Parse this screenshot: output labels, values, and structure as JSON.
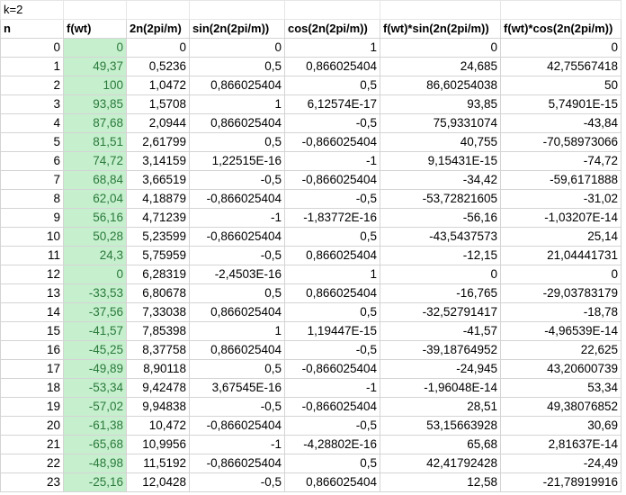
{
  "top_label": "k=2",
  "headers": [
    "n",
    "f(wt)",
    "2n(2pi/m)",
    "sin(2n(2pi/m))",
    "cos(2n(2pi/m))",
    "f(wt)*sin(2n(2pi/m))",
    "f(wt)*cos(2n(2pi/m))"
  ],
  "rows": [
    [
      "0",
      "0",
      "0",
      "0",
      "1",
      "0",
      "0"
    ],
    [
      "1",
      "49,37",
      "0,5236",
      "0,5",
      "0,866025404",
      "24,685",
      "42,75567418"
    ],
    [
      "2",
      "100",
      "1,0472",
      "0,866025404",
      "0,5",
      "86,60254038",
      "50"
    ],
    [
      "3",
      "93,85",
      "1,5708",
      "1",
      "6,12574E-17",
      "93,85",
      "5,74901E-15"
    ],
    [
      "4",
      "87,68",
      "2,0944",
      "0,866025404",
      "-0,5",
      "75,9331074",
      "-43,84"
    ],
    [
      "5",
      "81,51",
      "2,61799",
      "0,5",
      "-0,866025404",
      "40,755",
      "-70,58973066"
    ],
    [
      "6",
      "74,72",
      "3,14159",
      "1,22515E-16",
      "-1",
      "9,15431E-15",
      "-74,72"
    ],
    [
      "7",
      "68,84",
      "3,66519",
      "-0,5",
      "-0,866025404",
      "-34,42",
      "-59,6171888"
    ],
    [
      "8",
      "62,04",
      "4,18879",
      "-0,866025404",
      "-0,5",
      "-53,72821605",
      "-31,02"
    ],
    [
      "9",
      "56,16",
      "4,71239",
      "-1",
      "-1,83772E-16",
      "-56,16",
      "-1,03207E-14"
    ],
    [
      "10",
      "50,28",
      "5,23599",
      "-0,866025404",
      "0,5",
      "-43,5437573",
      "25,14"
    ],
    [
      "11",
      "24,3",
      "5,75959",
      "-0,5",
      "0,866025404",
      "-12,15",
      "21,04441731"
    ],
    [
      "12",
      "0",
      "6,28319",
      "-2,4503E-16",
      "1",
      "0",
      "0"
    ],
    [
      "13",
      "-33,53",
      "6,80678",
      "0,5",
      "0,866025404",
      "-16,765",
      "-29,03783179"
    ],
    [
      "14",
      "-37,56",
      "7,33038",
      "0,866025404",
      "0,5",
      "-32,52791417",
      "-18,78"
    ],
    [
      "15",
      "-41,57",
      "7,85398",
      "1",
      "1,19447E-15",
      "-41,57",
      "-4,96539E-14"
    ],
    [
      "16",
      "-45,25",
      "8,37758",
      "0,866025404",
      "-0,5",
      "-39,18764952",
      "22,625"
    ],
    [
      "17",
      "-49,89",
      "8,90118",
      "0,5",
      "-0,866025404",
      "-24,945",
      "43,20600739"
    ],
    [
      "18",
      "-53,34",
      "9,42478",
      "3,67545E-16",
      "-1",
      "-1,96048E-14",
      "53,34"
    ],
    [
      "19",
      "-57,02",
      "9,94838",
      "-0,5",
      "-0,866025404",
      "28,51",
      "49,38076852"
    ],
    [
      "20",
      "-61,38",
      "10,472",
      "-0,866025404",
      "-0,5",
      "53,15663928",
      "30,69"
    ],
    [
      "21",
      "-65,68",
      "10,9956",
      "-1",
      "-4,28802E-16",
      "65,68",
      "2,81637E-14"
    ],
    [
      "22",
      "-48,98",
      "11,5192",
      "-0,866025404",
      "0,5",
      "42,41792428",
      "-24,49"
    ],
    [
      "23",
      "-25,16",
      "12,0428",
      "-0,5",
      "0,866025404",
      "12,58",
      "-21,78919916"
    ]
  ]
}
